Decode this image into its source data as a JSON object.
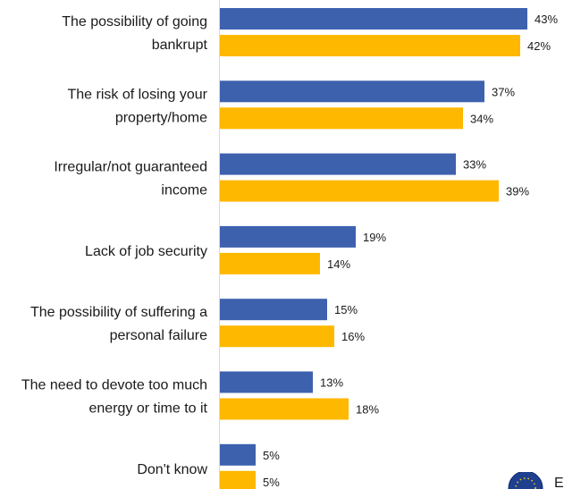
{
  "chart_data": {
    "type": "bar",
    "orientation": "horizontal",
    "categories": [
      [
        "The possibility of going",
        "bankrupt"
      ],
      [
        "The risk of losing your",
        "property/home"
      ],
      [
        "Irregular/not guaranteed",
        "income"
      ],
      [
        "Lack of job security"
      ],
      [
        "The possibility of suffering a",
        "personal failure"
      ],
      [
        "The need to devote too much",
        "energy or time to it"
      ],
      [
        "Don't know"
      ]
    ],
    "series": [
      {
        "color": "#3e61ae",
        "values": [
          43,
          37,
          33,
          19,
          15,
          13,
          5
        ]
      },
      {
        "color": "#ffb800",
        "values": [
          42,
          34,
          39,
          14,
          16,
          18,
          5
        ]
      }
    ],
    "value_suffix": "%",
    "xlim": [
      0,
      45
    ],
    "grid": false,
    "legend": {
      "position": "bottom-right",
      "partial_text": "E"
    }
  }
}
